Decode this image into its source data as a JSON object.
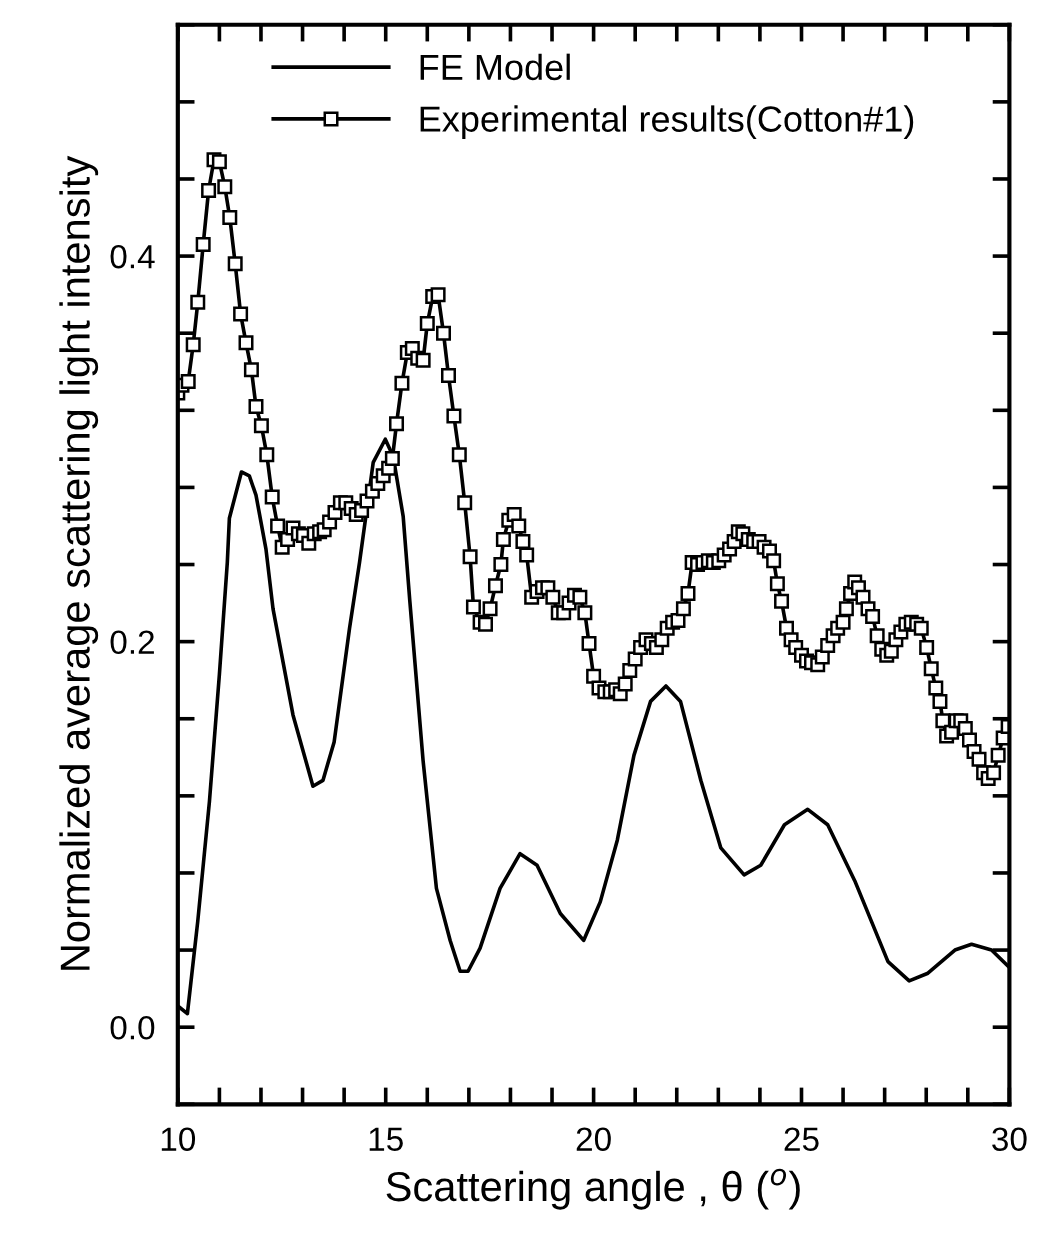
{
  "chart_data": {
    "type": "line",
    "xlabel": "Scattering angle , θ ($^{o}$)",
    "ylabel": "Normalized average scattering light intensity",
    "xlim": [
      10,
      30
    ],
    "ylim": [
      -0.04,
      0.52
    ],
    "xticks": [
      10,
      {
        "value": 11,
        "label": null
      },
      {
        "value": 12,
        "label": null
      },
      {
        "value": 13,
        "label": null
      },
      {
        "value": 14,
        "label": null
      },
      15,
      {
        "value": 16,
        "label": null
      },
      {
        "value": 17,
        "label": null
      },
      {
        "value": 18,
        "label": null
      },
      {
        "value": 19,
        "label": null
      },
      20,
      {
        "value": 21,
        "label": null
      },
      {
        "value": 22,
        "label": null
      },
      {
        "value": 23,
        "label": null
      },
      {
        "value": 24,
        "label": null
      },
      25,
      {
        "value": 26,
        "label": null
      },
      {
        "value": 27,
        "label": null
      },
      {
        "value": 28,
        "label": null
      },
      {
        "value": 29,
        "label": null
      },
      30
    ],
    "yticks": [
      {
        "value": -0.04,
        "label": null
      },
      {
        "value": 0,
        "label": "0.0"
      },
      {
        "value": 0.04,
        "label": null
      },
      {
        "value": 0.08,
        "label": null
      },
      {
        "value": 0.12,
        "label": null
      },
      {
        "value": 0.16,
        "label": null
      },
      0.2,
      {
        "value": 0.24,
        "label": null
      },
      {
        "value": 0.28,
        "label": null
      },
      {
        "value": 0.32,
        "label": null
      },
      {
        "value": 0.36,
        "label": null
      },
      0.4,
      {
        "value": 0.44,
        "label": null
      },
      {
        "value": 0.48,
        "label": null
      },
      {
        "value": 0.52,
        "label": null
      }
    ],
    "grid": false,
    "legend": "top left",
    "line_style": "solid",
    "series": [
      {
        "name": "FE Model",
        "color": "#000000",
        "marker": "none",
        "x": [
          10.0,
          10.23,
          10.48,
          10.76,
          11.0,
          11.19,
          11.24,
          11.53,
          11.72,
          11.88,
          12.12,
          12.29,
          12.77,
          13.25,
          13.49,
          13.76,
          14.13,
          14.37,
          14.7,
          14.99,
          15.18,
          15.42,
          15.58,
          15.9,
          16.22,
          16.55,
          16.79,
          16.98,
          17.27,
          17.75,
          18.23,
          18.64,
          19.2,
          19.76,
          20.16,
          20.57,
          20.97,
          21.37,
          21.74,
          22.09,
          22.58,
          23.06,
          23.62,
          24.02,
          24.59,
          25.15,
          25.63,
          26.28,
          27.08,
          27.59,
          28.04,
          28.69,
          29.09,
          29.57,
          30.0
        ],
        "values": [
          0.011,
          0.007,
          0.055,
          0.117,
          0.183,
          0.241,
          0.264,
          0.288,
          0.286,
          0.276,
          0.248,
          0.217,
          0.162,
          0.125,
          0.128,
          0.148,
          0.207,
          0.241,
          0.293,
          0.305,
          0.296,
          0.265,
          0.221,
          0.138,
          0.072,
          0.045,
          0.029,
          0.029,
          0.041,
          0.072,
          0.09,
          0.084,
          0.059,
          0.045,
          0.065,
          0.097,
          0.141,
          0.169,
          0.177,
          0.169,
          0.128,
          0.093,
          0.079,
          0.084,
          0.105,
          0.113,
          0.105,
          0.076,
          0.034,
          0.024,
          0.028,
          0.04,
          0.043,
          0.04,
          0.031
        ]
      },
      {
        "name": "Experimental results(Cotton#1)",
        "color": "#000000",
        "marker": "square",
        "x": [
          10.0,
          10.1,
          10.25,
          10.37,
          10.48,
          10.61,
          10.74,
          10.87,
          11.0,
          11.13,
          11.25,
          11.38,
          11.51,
          11.64,
          11.77,
          11.88,
          12.01,
          12.14,
          12.27,
          12.4,
          12.51,
          12.64,
          12.77,
          12.9,
          13.02,
          13.15,
          13.28,
          13.41,
          13.52,
          13.65,
          13.78,
          13.91,
          14.04,
          14.17,
          14.29,
          14.42,
          14.55,
          14.68,
          14.81,
          14.94,
          15.07,
          15.16,
          15.26,
          15.39,
          15.52,
          15.64,
          15.77,
          15.9,
          16.0,
          16.13,
          16.26,
          16.39,
          16.51,
          16.64,
          16.77,
          16.9,
          17.03,
          17.11,
          17.27,
          17.4,
          17.51,
          17.64,
          17.77,
          17.83,
          17.96,
          18.09,
          18.2,
          18.3,
          18.39,
          18.51,
          18.64,
          18.77,
          18.9,
          19.02,
          19.15,
          19.28,
          19.41,
          19.54,
          19.67,
          19.79,
          19.89,
          20.0,
          20.13,
          20.27,
          20.4,
          20.53,
          20.64,
          20.76,
          20.87,
          21.0,
          21.13,
          21.26,
          21.39,
          21.51,
          21.64,
          21.77,
          21.9,
          22.03,
          22.16,
          22.27,
          22.37,
          22.5,
          22.63,
          22.76,
          22.88,
          23.01,
          23.14,
          23.27,
          23.38,
          23.48,
          23.59,
          23.72,
          23.85,
          23.98,
          24.1,
          24.23,
          24.33,
          24.42,
          24.52,
          24.64,
          24.75,
          24.86,
          25.0,
          25.12,
          25.24,
          25.39,
          25.5,
          25.63,
          25.76,
          25.87,
          26.0,
          26.08,
          26.18,
          26.28,
          26.37,
          26.48,
          26.6,
          26.71,
          26.82,
          26.93,
          27.05,
          27.16,
          27.27,
          27.39,
          27.51,
          27.64,
          27.77,
          27.88,
          28.01,
          28.12,
          28.23,
          28.33,
          28.4,
          28.49,
          28.61,
          28.72,
          28.83,
          28.94,
          29.04,
          29.15,
          29.27,
          29.38,
          29.49,
          29.62,
          29.73,
          29.85,
          29.97
        ],
        "values": [
          0.329,
          0.333,
          0.335,
          0.354,
          0.376,
          0.406,
          0.434,
          0.45,
          0.449,
          0.436,
          0.42,
          0.396,
          0.37,
          0.355,
          0.341,
          0.322,
          0.312,
          0.297,
          0.275,
          0.26,
          0.249,
          0.253,
          0.259,
          0.256,
          0.255,
          0.251,
          0.256,
          0.257,
          0.258,
          0.262,
          0.267,
          0.272,
          0.272,
          0.269,
          0.266,
          0.268,
          0.273,
          0.278,
          0.282,
          0.286,
          0.29,
          0.295,
          0.313,
          0.334,
          0.35,
          0.352,
          0.347,
          0.346,
          0.365,
          0.379,
          0.38,
          0.36,
          0.338,
          0.317,
          0.297,
          0.272,
          0.244,
          0.218,
          0.21,
          0.209,
          0.217,
          0.229,
          0.24,
          0.253,
          0.263,
          0.266,
          0.26,
          0.252,
          0.245,
          0.223,
          0.226,
          0.228,
          0.228,
          0.223,
          0.215,
          0.215,
          0.22,
          0.224,
          0.223,
          0.215,
          0.199,
          0.182,
          0.176,
          0.174,
          0.174,
          0.175,
          0.173,
          0.178,
          0.185,
          0.191,
          0.197,
          0.201,
          0.199,
          0.197,
          0.201,
          0.207,
          0.21,
          0.211,
          0.217,
          0.225,
          0.241,
          0.24,
          0.241,
          0.242,
          0.241,
          0.242,
          0.245,
          0.248,
          0.252,
          0.257,
          0.256,
          0.253,
          0.252,
          0.252,
          0.249,
          0.247,
          0.242,
          0.23,
          0.221,
          0.207,
          0.201,
          0.197,
          0.193,
          0.19,
          0.189,
          0.188,
          0.192,
          0.198,
          0.203,
          0.207,
          0.21,
          0.217,
          0.225,
          0.231,
          0.228,
          0.223,
          0.217,
          0.213,
          0.203,
          0.196,
          0.193,
          0.195,
          0.201,
          0.205,
          0.209,
          0.21,
          0.209,
          0.207,
          0.197,
          0.186,
          0.176,
          0.169,
          0.159,
          0.151,
          0.153,
          0.159,
          0.159,
          0.155,
          0.149,
          0.143,
          0.139,
          0.132,
          0.129,
          0.132,
          0.141,
          0.15,
          0.156
        ]
      }
    ]
  }
}
